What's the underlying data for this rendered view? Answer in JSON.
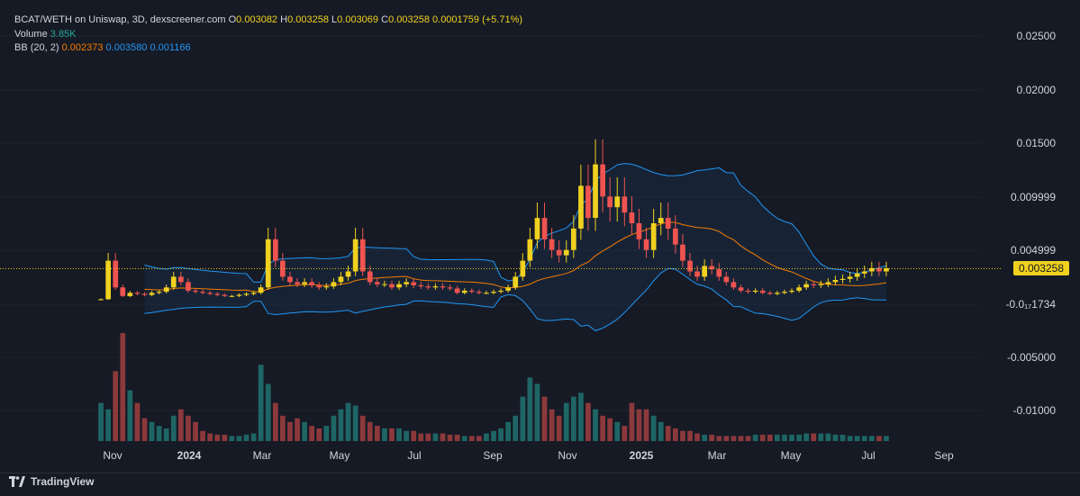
{
  "header": {
    "pair": "BCAT/WETH on Uniswap, 3D, dexscreener.com",
    "o_label": "O",
    "o_val": "0.003082",
    "h_label": "H",
    "h_val": "0.003258",
    "l_label": "L",
    "l_val": "0.003069",
    "c_label": "C",
    "c_val": "0.003258",
    "change": "0.0001759 (+5.71%)",
    "volume_label": "Volume",
    "volume_val": "3.85K",
    "bb_label": "BB (20, 2)",
    "bb_mid": "0.002373",
    "bb_upper": "0.003580",
    "bb_lower": "0.001166"
  },
  "price_box": "0.003258",
  "branding": "TradingView",
  "colors": {
    "up": "#26a69a",
    "down": "#ef5350",
    "candle_up": "#f0d11f",
    "candle_down": "#ef5350",
    "bb_mid": "#f57c00",
    "bb_band": "#2196f3",
    "price_line": "#f0d11f"
  },
  "chart_data": {
    "type": "candlestick",
    "title": "BCAT/WETH on Uniswap, 3D, dexscreener.com",
    "y_ticks": [
      "0.02500",
      "0.02000",
      "0.01500",
      "0.009999",
      "0.004999",
      "-0.0₁₇1734",
      "-0.005000",
      "-0.01000"
    ],
    "y_tick_values": [
      0.025,
      0.02,
      0.015,
      0.009999,
      0.004999,
      0,
      -0.005,
      -0.01
    ],
    "x_ticks": [
      "Nov",
      "2024",
      "Mar",
      "May",
      "Jul",
      "Sep",
      "Nov",
      "2025",
      "Mar",
      "May",
      "Jul",
      "Sep"
    ],
    "x_tick_bold": [
      false,
      true,
      false,
      false,
      false,
      false,
      false,
      true,
      false,
      false,
      false,
      false
    ],
    "last_price": 0.003258,
    "close_series_approx": [
      0.0004,
      0.004,
      0.0015,
      0.0007,
      0.001,
      0.0009,
      0.0008,
      0.001,
      0.0011,
      0.0015,
      0.0025,
      0.002,
      0.0012,
      0.0011,
      0.001,
      0.0009,
      0.0008,
      0.0007,
      0.0007,
      0.0008,
      0.0009,
      0.001,
      0.0015,
      0.006,
      0.004,
      0.0025,
      0.002,
      0.0018,
      0.002,
      0.0017,
      0.0015,
      0.0016,
      0.002,
      0.0025,
      0.003,
      0.006,
      0.003,
      0.002,
      0.0018,
      0.0018,
      0.0015,
      0.0018,
      0.002,
      0.0017,
      0.0016,
      0.0015,
      0.0016,
      0.0015,
      0.0014,
      0.001,
      0.0012,
      0.0011,
      0.001,
      0.001,
      0.0011,
      0.0012,
      0.0015,
      0.0025,
      0.004,
      0.006,
      0.008,
      0.006,
      0.005,
      0.0045,
      0.005,
      0.007,
      0.011,
      0.008,
      0.013,
      0.01,
      0.009,
      0.01,
      0.0085,
      0.0075,
      0.006,
      0.005,
      0.0075,
      0.008,
      0.007,
      0.0055,
      0.004,
      0.003,
      0.0025,
      0.0035,
      0.0032,
      0.0025,
      0.002,
      0.0015,
      0.0012,
      0.0011,
      0.0012,
      0.001,
      0.0009,
      0.001,
      0.0011,
      0.0012,
      0.0015,
      0.0018,
      0.0017,
      0.0018,
      0.002,
      0.0022,
      0.0023,
      0.0025,
      0.0028,
      0.003,
      0.0033,
      0.003,
      0.0033
    ],
    "volume_approx": [
      30,
      25,
      55,
      85,
      40,
      30,
      18,
      15,
      12,
      10,
      20,
      25,
      20,
      15,
      8,
      6,
      5,
      5,
      4,
      4,
      5,
      6,
      60,
      45,
      30,
      20,
      15,
      18,
      15,
      12,
      10,
      12,
      20,
      25,
      30,
      28,
      20,
      15,
      12,
      10,
      10,
      10,
      8,
      8,
      6,
      6,
      6,
      6,
      5,
      5,
      4,
      4,
      4,
      6,
      8,
      10,
      15,
      20,
      35,
      50,
      45,
      35,
      25,
      20,
      30,
      35,
      38,
      30,
      25,
      20,
      18,
      15,
      12,
      30,
      25,
      25,
      20,
      15,
      12,
      10,
      8,
      8,
      6,
      5,
      5,
      4,
      4,
      4,
      4,
      4,
      5,
      5,
      5,
      5,
      5,
      5,
      5,
      6,
      6,
      6,
      6,
      5,
      5,
      4,
      4,
      4,
      4,
      4,
      4
    ]
  }
}
